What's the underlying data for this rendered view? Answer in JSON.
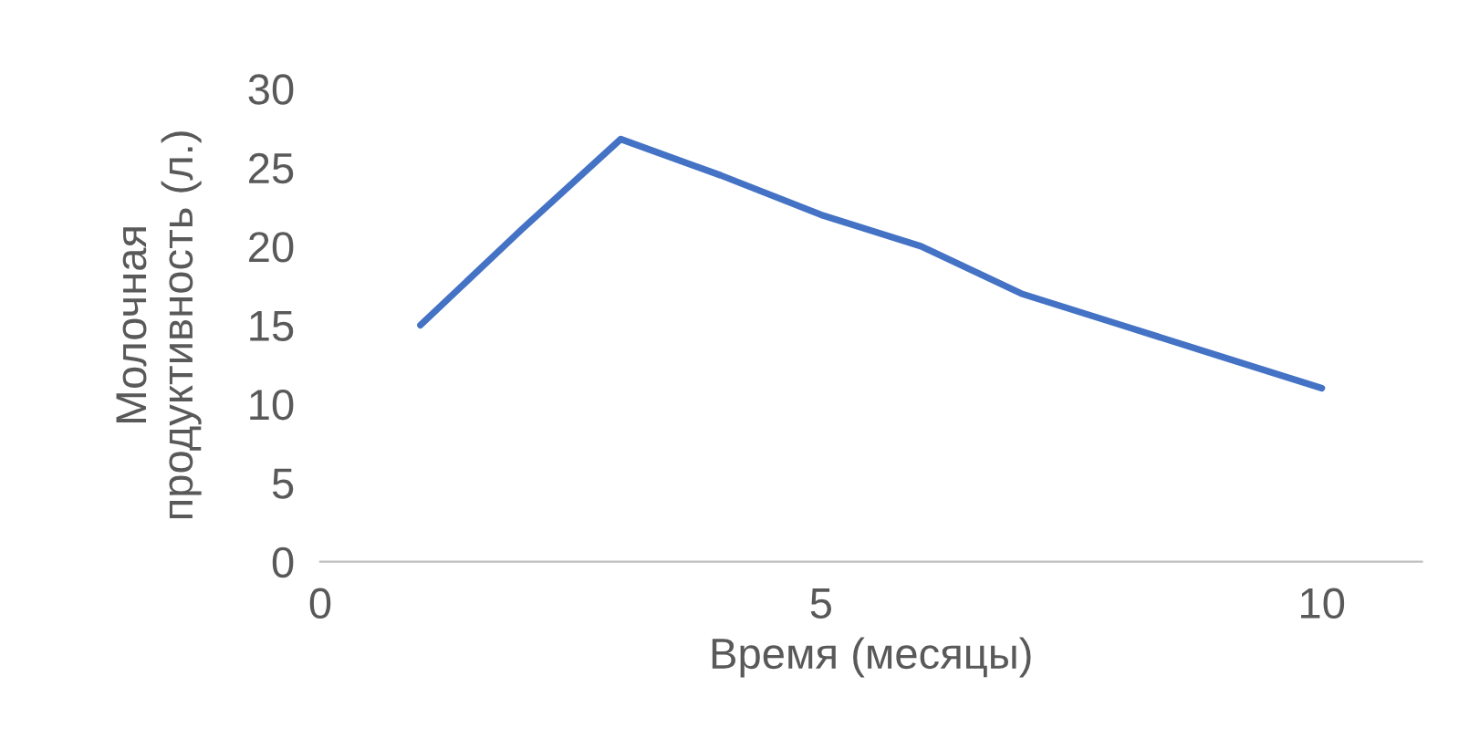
{
  "chart_data": {
    "type": "line",
    "xlabel": "Время (месяцы)",
    "ylabel": "Молочная\nпродуктивность (л.)",
    "x": [
      1,
      2,
      3,
      4,
      5,
      6,
      7,
      8,
      9,
      10
    ],
    "series": [
      {
        "color": "#4472c4",
        "values": [
          15,
          21,
          26.8,
          24.5,
          22,
          20,
          17,
          15,
          13,
          11
        ]
      }
    ],
    "xlim": [
      0,
      11
    ],
    "ylim": [
      0,
      30
    ],
    "xticks": [
      0,
      5,
      10
    ],
    "yticks": [
      0,
      5,
      10,
      15,
      20,
      25,
      30
    ],
    "grid": false,
    "marker": "none",
    "line_style": "solid"
  }
}
